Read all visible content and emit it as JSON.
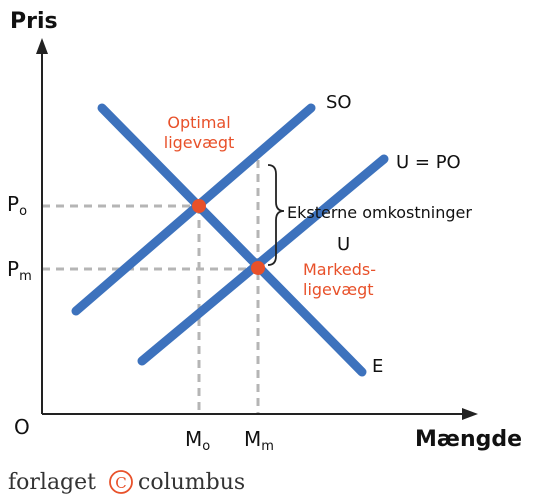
{
  "axes": {
    "y_title": "Pris",
    "x_title": "Mængde",
    "origin": "O"
  },
  "curves": {
    "so": "SO",
    "u_po": "U = PO",
    "e": "E",
    "u": "U"
  },
  "ticks": {
    "po_main": "P",
    "po_sub": "o",
    "pm_main": "P",
    "pm_sub": "m",
    "mo_main": "M",
    "mo_sub": "o",
    "mm_main": "M",
    "mm_sub": "m"
  },
  "points": {
    "optimal_line1": "Optimal",
    "optimal_line2": "ligevægt",
    "market_line1": "Markeds-",
    "market_line2": "ligevægt"
  },
  "annotation": {
    "external_costs": "Eksterne omkostninger"
  },
  "footer": {
    "brand_left": "forlaget",
    "brand_symbol": "C",
    "brand_right": "columbus"
  },
  "colors": {
    "curve": "#3d72bd",
    "point": "#e8512a",
    "guide": "#b5b5b5",
    "axis": "#222222"
  }
}
